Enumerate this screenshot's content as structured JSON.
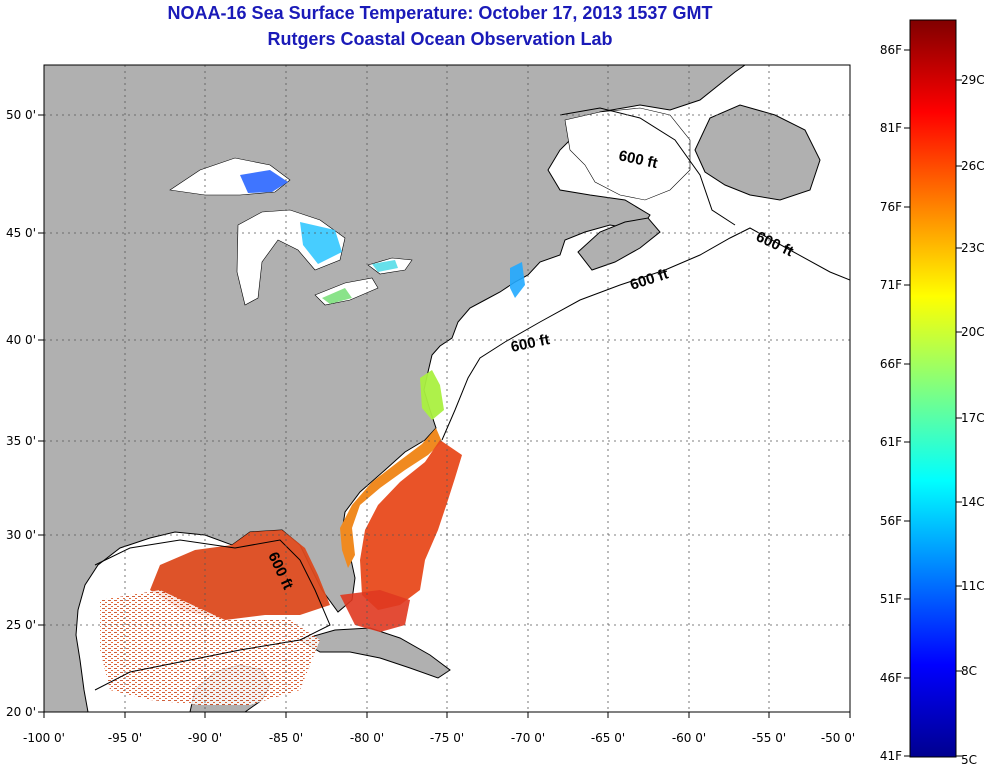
{
  "header": {
    "title_line1": "NOAA-16 Sea Surface Temperature:  October 17, 2013 1537 GMT",
    "title_line2": "Rutgers Coastal Ocean Observation Lab"
  },
  "map": {
    "region": "US East Coast and Gulf of Mexico",
    "lon_range": [
      -100,
      -50
    ],
    "lat_range": [
      20,
      52.5
    ],
    "grid": true,
    "x_ticks": [
      "-100 0'",
      "-95 0'",
      "-90 0'",
      "-85 0'",
      "-80 0'",
      "-75 0'",
      "-70 0'",
      "-65 0'",
      "-60 0'",
      "-55 0'",
      "-50 0'"
    ],
    "y_ticks": [
      "20 0'",
      "25 0'",
      "30 0'",
      "35 0'",
      "40 0'",
      "45 0'",
      "50 0'"
    ],
    "land_color": "#b0b0b0",
    "ocean_no_data_color": "#ffffff",
    "isobath_labels": [
      "600 ft",
      "600 ft",
      "600 ft",
      "600 ft",
      "600 ft"
    ]
  },
  "colorbar": {
    "fahrenheit_labels": [
      "86F",
      "81F",
      "76F",
      "71F",
      "66F",
      "61F",
      "56F",
      "51F",
      "46F",
      "41F"
    ],
    "celsius_labels": [
      "29C",
      "26C",
      "23C",
      "20C",
      "17C",
      "14C",
      "11C",
      "8C",
      "5C"
    ],
    "colormap": "jet",
    "range_f": [
      41,
      88
    ]
  }
}
